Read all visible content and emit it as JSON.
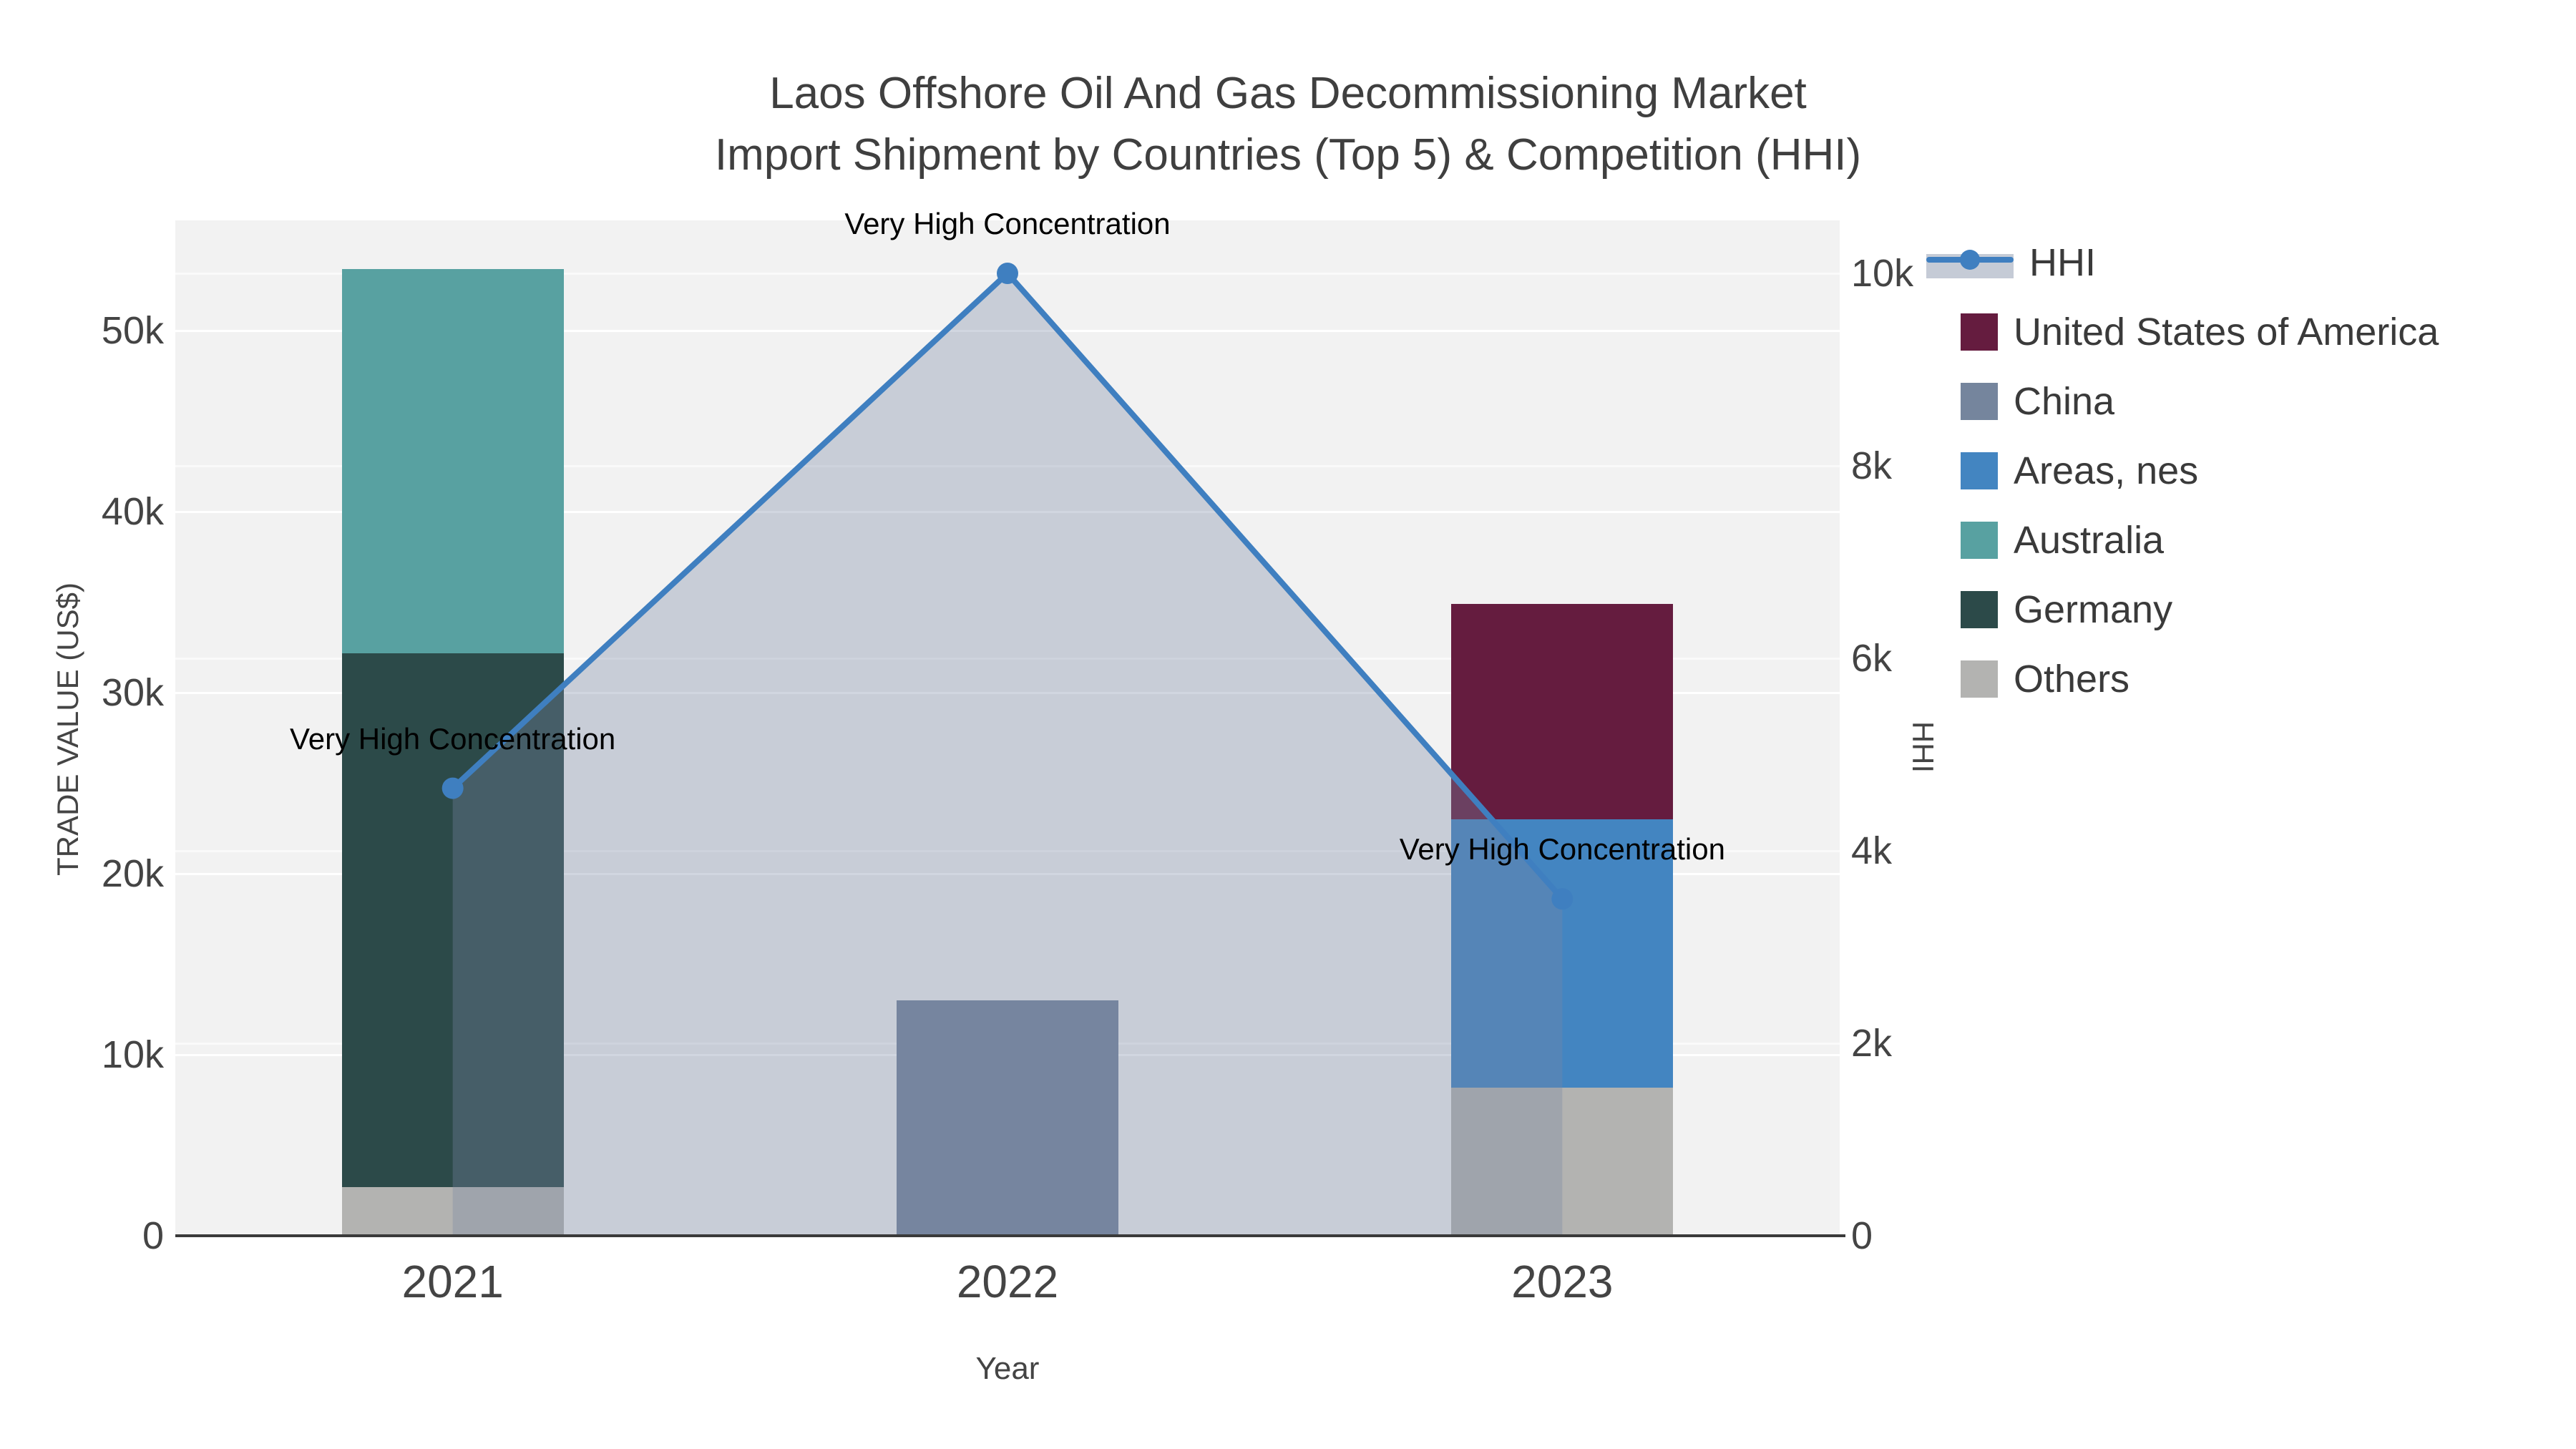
{
  "title": {
    "line1": "Laos Offshore Oil And Gas Decommissioning Market",
    "line2": "Import Shipment by Countries (Top 5) & Competition (HHI)"
  },
  "chart_data": {
    "type": "bar+line",
    "categories": [
      "2021",
      "2022",
      "2023"
    ],
    "bar_series": [
      {
        "name": "United States of America",
        "color": "#651c3f",
        "values": [
          0,
          0,
          11900
        ]
      },
      {
        "name": "China",
        "color": "#75859d",
        "values": [
          0,
          13000,
          0
        ]
      },
      {
        "name": "Areas, nes",
        "color": "#4385c1",
        "values": [
          0,
          0,
          14800
        ]
      },
      {
        "name": "Australia",
        "color": "#58a1a1",
        "values": [
          21200,
          0,
          0
        ]
      },
      {
        "name": "Germany",
        "color": "#2c4a49",
        "values": [
          29500,
          0,
          0
        ]
      },
      {
        "name": "Others",
        "color": "#b3b3b1",
        "values": [
          2700,
          0,
          8200
        ]
      }
    ],
    "stack_note": "bars stacked bottom-to-top in reverse legend order: Others, Germany, Australia, Areas nes, China, USA",
    "line_series": {
      "name": "HHI",
      "color": "#3f7fc0",
      "fill_color": "rgba(119,134,165,0.34)",
      "values": [
        4650,
        10000,
        3500
      ]
    },
    "annotations": [
      {
        "text": "Very High Concentration",
        "category_index": 0
      },
      {
        "text": "Very High Concentration",
        "category_index": 1
      },
      {
        "text": "Very High Concentration",
        "category_index": 2
      }
    ],
    "left_axis": {
      "title": "TRADE VALUE (US$)",
      "ticks": [
        {
          "label": "0",
          "value": 0
        },
        {
          "label": "10k",
          "value": 10000
        },
        {
          "label": "20k",
          "value": 20000
        },
        {
          "label": "30k",
          "value": 30000
        },
        {
          "label": "40k",
          "value": 40000
        },
        {
          "label": "50k",
          "value": 50000
        }
      ],
      "range": [
        0,
        56100
      ]
    },
    "right_axis": {
      "title": "HHI",
      "ticks": [
        {
          "label": "0",
          "value": 0
        },
        {
          "label": "2k",
          "value": 2000
        },
        {
          "label": "4k",
          "value": 4000
        },
        {
          "label": "6k",
          "value": 6000
        },
        {
          "label": "8k",
          "value": 8000
        },
        {
          "label": "10k",
          "value": 10000
        }
      ],
      "range": [
        0,
        10550
      ]
    },
    "x_axis": {
      "title": "Year"
    },
    "legend_position": "right",
    "grid": true
  },
  "legend": {
    "items": [
      {
        "label": "HHI",
        "type": "line",
        "color": "#3f7fc0"
      },
      {
        "label": "United States of America",
        "type": "swatch",
        "color": "#651c3f"
      },
      {
        "label": "China",
        "type": "swatch",
        "color": "#75859d"
      },
      {
        "label": "Areas, nes",
        "type": "swatch",
        "color": "#4385c1"
      },
      {
        "label": "Australia",
        "type": "swatch",
        "color": "#58a1a1"
      },
      {
        "label": "Germany",
        "type": "swatch",
        "color": "#2c4a49"
      },
      {
        "label": "Others",
        "type": "swatch",
        "color": "#b3b3b1"
      }
    ]
  }
}
